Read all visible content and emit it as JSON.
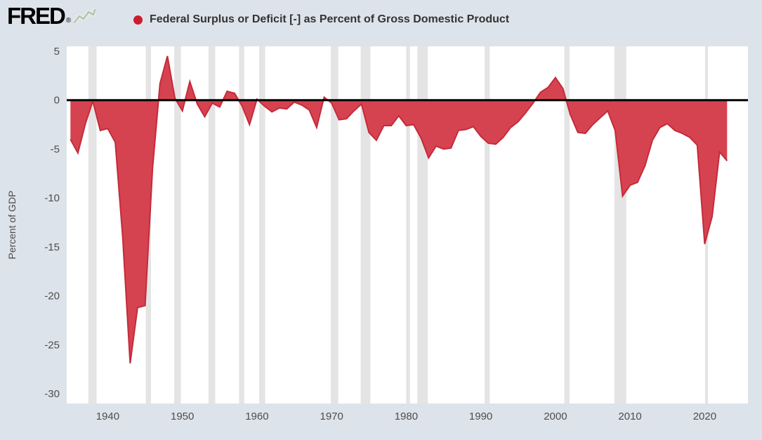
{
  "header": {
    "logo_text": "FRED",
    "logo_registered": "®",
    "series_title": "Federal Surplus or Deficit [-] as Percent of Gross Domestic Product"
  },
  "colors": {
    "page_bg": "#dde3ea",
    "plot_bg": "#ffffff",
    "recession_band": "#e4e4e4",
    "area_fill": "#d64350",
    "line_stroke": "#c52a3a",
    "zero_line": "#000000",
    "legend_dot": "#ce1b30",
    "tick_text": "#4d4d4d",
    "title_text": "#333333",
    "logo_spark_stroke": "#b5c4b5"
  },
  "chart_data": {
    "type": "area",
    "title": "Federal Surplus or Deficit [-] as Percent of Gross Domestic Product",
    "xlabel": "",
    "ylabel": "Percent of GDP",
    "x_ticks": [
      1940,
      1950,
      1960,
      1970,
      1980,
      1990,
      2000,
      2010,
      2020
    ],
    "y_ticks": [
      5,
      0,
      -5,
      -10,
      -15,
      -20,
      -25,
      -30
    ],
    "x_range": [
      1934.5,
      2025.8
    ],
    "ylim": [
      -31,
      5.5
    ],
    "zero_baseline": 0,
    "grid": false,
    "legend_position": "top",
    "years": [
      1935,
      1936,
      1937,
      1938,
      1939,
      1940,
      1941,
      1942,
      1943,
      1944,
      1945,
      1946,
      1947,
      1948,
      1949,
      1950,
      1951,
      1952,
      1953,
      1954,
      1955,
      1956,
      1957,
      1958,
      1959,
      1960,
      1961,
      1962,
      1963,
      1964,
      1965,
      1966,
      1967,
      1968,
      1969,
      1970,
      1971,
      1972,
      1973,
      1974,
      1975,
      1976,
      1977,
      1978,
      1979,
      1980,
      1981,
      1982,
      1983,
      1984,
      1985,
      1986,
      1987,
      1988,
      1989,
      1990,
      1991,
      1992,
      1993,
      1994,
      1995,
      1996,
      1997,
      1998,
      1999,
      2000,
      2001,
      2002,
      2003,
      2004,
      2005,
      2006,
      2007,
      2008,
      2009,
      2010,
      2011,
      2012,
      2013,
      2014,
      2015,
      2016,
      2017,
      2018,
      2019,
      2020,
      2021,
      2022,
      2023
    ],
    "values": [
      -4.0,
      -5.4,
      -2.4,
      -0.1,
      -3.1,
      -2.9,
      -4.3,
      -14.0,
      -26.9,
      -21.2,
      -21.0,
      -7.0,
      1.7,
      4.5,
      0.2,
      -1.1,
      1.9,
      -0.4,
      -1.7,
      -0.3,
      -0.7,
      0.9,
      0.7,
      -0.6,
      -2.5,
      0.1,
      -0.6,
      -1.2,
      -0.8,
      -0.9,
      -0.2,
      -0.5,
      -1.0,
      -2.8,
      0.3,
      -0.3,
      -2.0,
      -1.9,
      -1.1,
      -0.4,
      -3.3,
      -4.1,
      -2.6,
      -2.6,
      -1.6,
      -2.6,
      -2.5,
      -3.9,
      -5.9,
      -4.7,
      -5.0,
      -4.9,
      -3.1,
      -3.0,
      -2.7,
      -3.7,
      -4.4,
      -4.5,
      -3.8,
      -2.8,
      -2.2,
      -1.3,
      -0.3,
      0.8,
      1.3,
      2.3,
      1.2,
      -1.5,
      -3.3,
      -3.4,
      -2.5,
      -1.8,
      -1.1,
      -3.1,
      -9.8,
      -8.7,
      -8.4,
      -6.7,
      -4.1,
      -2.8,
      -2.4,
      -3.1,
      -3.4,
      -3.8,
      -4.6,
      -14.7,
      -11.9,
      -5.3,
      -6.2
    ],
    "recessions": [
      [
        1937.4,
        1938.5
      ],
      [
        1945.1,
        1945.8
      ],
      [
        1948.9,
        1949.8
      ],
      [
        1953.5,
        1954.4
      ],
      [
        1957.6,
        1958.3
      ],
      [
        1960.3,
        1961.1
      ],
      [
        1969.9,
        1970.9
      ],
      [
        1973.9,
        1975.2
      ],
      [
        1980.0,
        1980.5
      ],
      [
        1981.5,
        1982.9
      ],
      [
        1990.5,
        1991.2
      ],
      [
        2001.2,
        2001.9
      ],
      [
        2007.9,
        2009.5
      ],
      [
        2020.05,
        2020.45
      ]
    ]
  }
}
